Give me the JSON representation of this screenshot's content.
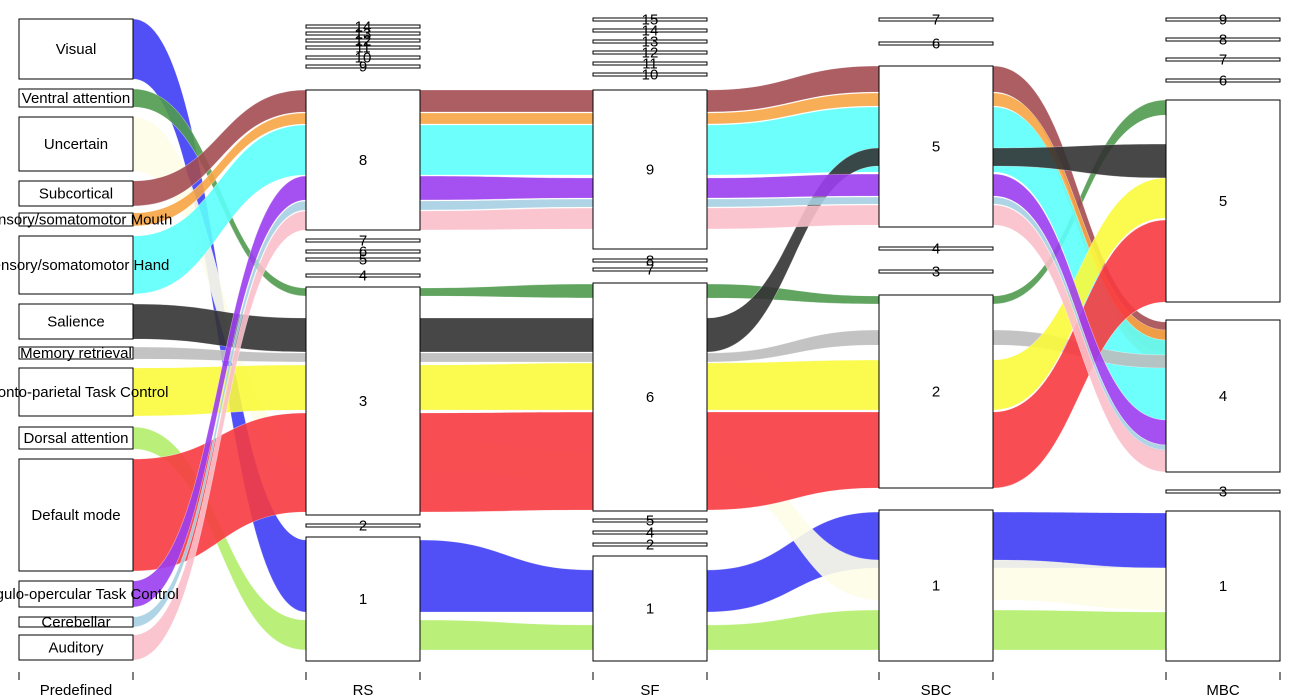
{
  "chart_data": {
    "type": "alluvial",
    "axes": [
      "Predefined",
      "RS",
      "SF",
      "SBC",
      "MBC"
    ],
    "nodes": {
      "Predefined": [
        "Visual",
        "Ventral attention",
        "Uncertain",
        "Subcortical",
        "Sensory/somatomotor Mouth",
        "Sensory/somatomotor Hand",
        "Salience",
        "Memory retrieval",
        "Fronto-parietal Task Control",
        "Dorsal attention",
        "Default mode",
        "Cingulo-opercular Task Control",
        "Cerebellar",
        "Auditory"
      ],
      "RS": [
        "14",
        "13",
        "12",
        "11",
        "10",
        "9",
        "8",
        "7",
        "6",
        "5",
        "4",
        "3",
        "2",
        "1"
      ],
      "SF": [
        "15",
        "14",
        "13",
        "12",
        "11",
        "10",
        "9",
        "8",
        "7",
        "6",
        "5",
        "4",
        "2",
        "1"
      ],
      "SBC": [
        "7",
        "6",
        "5",
        "4",
        "3",
        "2",
        "1"
      ],
      "MBC": [
        "9",
        "8",
        "7",
        "6",
        "5",
        "4",
        "3",
        "1"
      ]
    },
    "flows": [
      {
        "system": "Visual",
        "color": "#3d3df5",
        "path": [
          "Visual",
          "1",
          "1",
          "1",
          "1"
        ]
      },
      {
        "system": "Ventral attention",
        "color": "#4f9a4f",
        "path": [
          "Ventral attention",
          "3",
          "6",
          "2",
          "6"
        ]
      },
      {
        "system": "Uncertain",
        "color": "#fdfde8",
        "path": [
          "Uncertain",
          "3",
          "6",
          "2",
          "1"
        ]
      },
      {
        "system": "Subcortical",
        "color": "#a34c52",
        "path": [
          "Subcortical",
          "8",
          "9",
          "5",
          "4"
        ]
      },
      {
        "system": "Sensory/somatomotor Mouth",
        "color": "#f7a445",
        "path": [
          "Sensory/somatomotor Mouth",
          "8",
          "9",
          "5",
          "4"
        ]
      },
      {
        "system": "Sensory/somatomotor Hand",
        "color": "#5cfffb",
        "path": [
          "Sensory/somatomotor Hand",
          "8",
          "9",
          "5",
          "4"
        ]
      },
      {
        "system": "Salience",
        "color": "#333333",
        "path": [
          "Salience",
          "3",
          "6",
          "5",
          "5"
        ]
      },
      {
        "system": "Memory retrieval",
        "color": "#bdbdbd",
        "path": [
          "Memory retrieval",
          "3",
          "6",
          "2",
          "4"
        ]
      },
      {
        "system": "Fronto-parietal Task Control",
        "color": "#fafa3c",
        "path": [
          "Fronto-parietal Task Control",
          "3",
          "6",
          "2",
          "5"
        ]
      },
      {
        "system": "Dorsal attention",
        "color": "#b2ee6a",
        "path": [
          "Dorsal attention",
          "1",
          "1",
          "1",
          "1"
        ]
      },
      {
        "system": "Default mode",
        "color": "#f73b40",
        "path": [
          "Default mode",
          "3",
          "6",
          "2",
          "5"
        ]
      },
      {
        "system": "Cingulo-opercular Task Control",
        "color": "#9b3ef0",
        "path": [
          "Cingulo-opercular Task Control",
          "8",
          "9",
          "5",
          "4"
        ]
      },
      {
        "system": "Cerebellar",
        "color": "#a6cfe3",
        "path": [
          "Cerebellar",
          "8",
          "9",
          "5",
          "4"
        ]
      },
      {
        "system": "Auditory",
        "color": "#fbbfca",
        "path": [
          "Auditory",
          "8",
          "9",
          "5",
          "4"
        ]
      }
    ],
    "grid": false,
    "legend": "none"
  }
}
